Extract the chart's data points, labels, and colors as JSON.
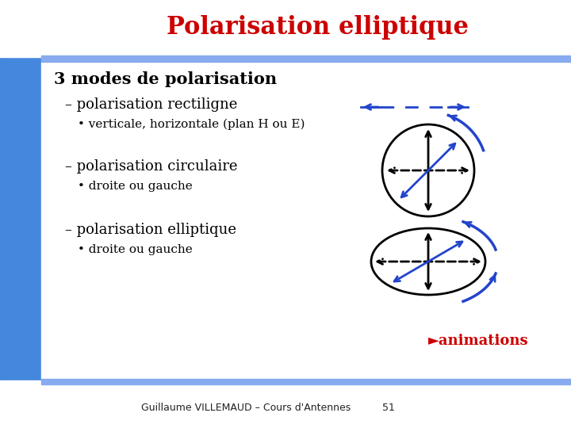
{
  "title": "Polarisation elliptique",
  "title_color": "#cc0000",
  "title_fontsize": 22,
  "bg_color": "#ffffff",
  "header_line_color": "#6699ee",
  "left_bar_color_top": "#4477cc",
  "left_bar_color_bot": "#3366bb",
  "text_color": "#000000",
  "blue_color": "#2244cc",
  "line1": "3 modes de polarisation",
  "line2": "– polarisation rectiligne",
  "line3": "• verticale, horizontale (plan H ou E)",
  "line4": "– polarisation circulaire",
  "line5": "• droite ou gauche",
  "line6": "– polarisation elliptique",
  "line7": "• droite ou gauche",
  "footer_text": "Guillaume VILLEMAUD – Cours d'Antennes",
  "footer_page": "51",
  "animations_text": "►animations",
  "animations_color": "#cc0000",
  "footer_line_color": "#6699ee"
}
